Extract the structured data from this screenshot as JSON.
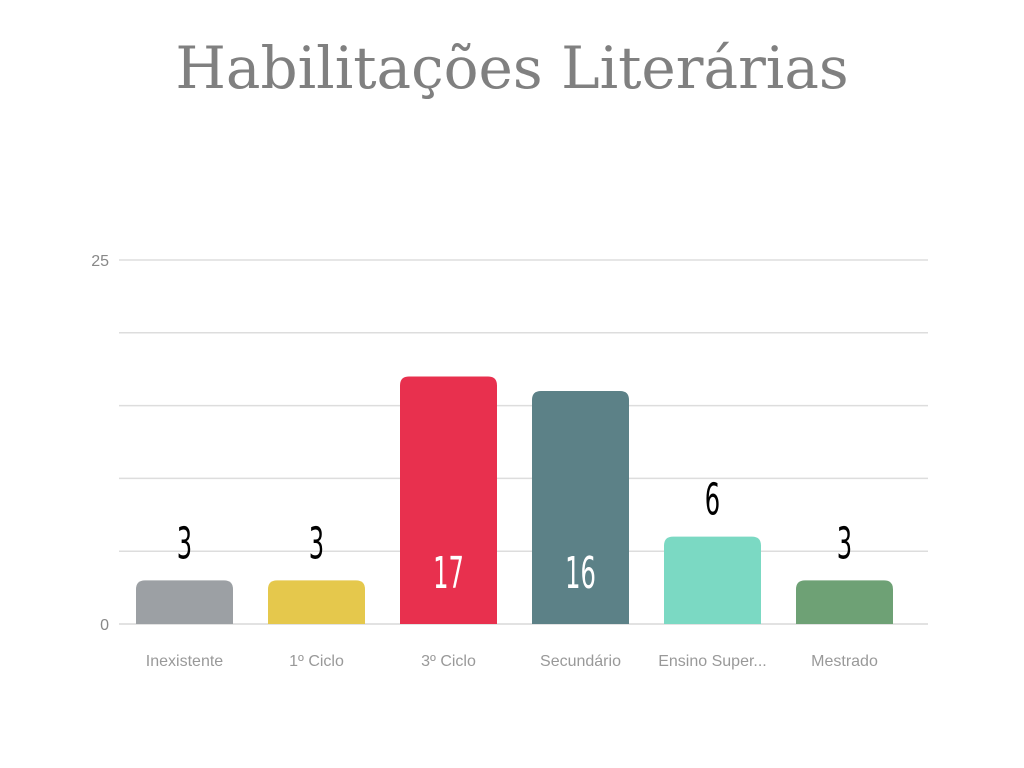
{
  "chart_data": {
    "type": "bar",
    "title": "Habilitações Literárias",
    "xlabel": "",
    "ylabel": "",
    "ylim": [
      0,
      25
    ],
    "yticks": [
      0,
      25
    ],
    "grid": true,
    "categories": [
      "Inexistente",
      "1º Ciclo",
      "3º Ciclo",
      "Secundário",
      "Ensino Super...",
      "Mestrado"
    ],
    "values": [
      3,
      3,
      17,
      16,
      6,
      3
    ],
    "colors": [
      "#9ca0a4",
      "#e5c84c",
      "#e8304e",
      "#5c8187",
      "#7bd9c3",
      "#6ea175"
    ],
    "value_label_colors": [
      "#000000",
      "#000000",
      "#ffffff",
      "#ffffff",
      "#000000",
      "#000000"
    ]
  }
}
